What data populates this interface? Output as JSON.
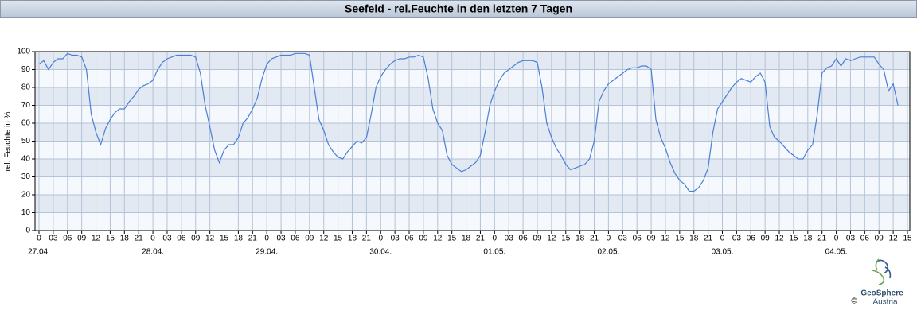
{
  "chart_data": {
    "type": "line",
    "title": "Seefeld - rel.Feuchte in den letzten 7 Tagen",
    "y_label": "rel. Feuchte in %",
    "x": [
      0,
      1,
      2,
      3,
      4,
      5,
      6,
      7,
      8,
      9,
      10,
      11,
      12,
      13,
      14,
      15,
      16,
      17,
      18,
      19,
      20,
      21,
      22,
      23,
      24,
      25,
      26,
      27,
      28,
      29,
      30,
      31,
      32,
      33,
      34,
      35,
      36,
      37,
      38,
      39,
      40,
      41,
      42,
      43,
      44,
      45,
      46,
      47,
      48,
      49,
      50,
      51,
      52,
      53,
      54,
      55,
      56,
      57,
      58,
      59,
      60,
      61,
      62,
      63,
      64,
      65,
      66,
      67,
      68,
      69,
      70,
      71,
      72,
      73,
      74,
      75,
      76,
      77,
      78,
      79,
      80,
      81,
      82,
      83,
      84,
      85,
      86,
      87,
      88,
      89,
      90,
      91,
      92,
      93,
      94,
      95,
      96,
      97,
      98,
      99,
      100,
      101,
      102,
      103,
      104,
      105,
      106,
      107,
      108,
      109,
      110,
      111,
      112,
      113,
      114,
      115,
      116,
      117,
      118,
      119,
      120,
      121,
      122,
      123,
      124,
      125,
      126,
      127,
      128,
      129,
      130,
      131,
      132,
      133,
      134,
      135,
      136,
      137,
      138,
      139,
      140,
      141,
      142,
      143,
      144,
      145,
      146,
      147,
      148,
      149,
      150,
      151,
      152,
      153,
      154,
      155,
      156,
      157,
      158,
      159,
      160,
      161,
      162,
      163,
      164,
      165,
      166,
      167,
      168,
      169,
      170,
      171,
      172,
      173,
      174,
      175,
      176,
      177,
      178,
      179,
      180,
      181
    ],
    "series": [
      {
        "name": "rel. Feuchte",
        "color": "#4a7fd6",
        "values": [
          93,
          95,
          90,
          94,
          96,
          96,
          99,
          98,
          98,
          97,
          90,
          65,
          55,
          48,
          57,
          62,
          66,
          68,
          68,
          72,
          75,
          79,
          81,
          82,
          84,
          90,
          94,
          96,
          97,
          98,
          98,
          98,
          98,
          97,
          88,
          70,
          58,
          45,
          38,
          45,
          48,
          48,
          52,
          60,
          63,
          68,
          74,
          85,
          93,
          96,
          97,
          98,
          98,
          98,
          99,
          99,
          99,
          98,
          80,
          62,
          56,
          48,
          44,
          41,
          40,
          44,
          47,
          50,
          49,
          52,
          65,
          80,
          86,
          90,
          93,
          95,
          96,
          96,
          97,
          97,
          98,
          97,
          85,
          68,
          60,
          56,
          42,
          37,
          35,
          33,
          34,
          36,
          38,
          42,
          55,
          70,
          78,
          84,
          88,
          90,
          92,
          94,
          95,
          95,
          95,
          94,
          80,
          60,
          52,
          46,
          42,
          37,
          34,
          35,
          36,
          37,
          40,
          50,
          72,
          78,
          82,
          84,
          86,
          88,
          90,
          91,
          91,
          92,
          92,
          90,
          62,
          52,
          46,
          38,
          32,
          28,
          26,
          22,
          22,
          24,
          28,
          35,
          55,
          68,
          72,
          76,
          80,
          83,
          85,
          84,
          83,
          86,
          88,
          83,
          58,
          52,
          50,
          47,
          44,
          42,
          40,
          40,
          45,
          48,
          65,
          88,
          91,
          92,
          96,
          92,
          96,
          95,
          96,
          97,
          97,
          97,
          97,
          93,
          90,
          78,
          82,
          70
        ]
      }
    ],
    "xlim": [
      0,
      183
    ],
    "xticks": [
      0,
      {
        "value": 3,
        "label": "03"
      },
      {
        "value": 6,
        "label": "06"
      },
      {
        "value": 9,
        "label": "09"
      },
      12,
      15,
      18,
      21,
      {
        "value": 24,
        "label": "0"
      },
      {
        "value": 27,
        "label": "03"
      },
      {
        "value": 30,
        "label": "06"
      },
      {
        "value": 33,
        "label": "09"
      },
      {
        "value": 36,
        "label": "12"
      },
      {
        "value": 39,
        "label": "15"
      },
      {
        "value": 42,
        "label": "18"
      },
      {
        "value": 45,
        "label": "21"
      },
      {
        "value": 48,
        "label": "0"
      },
      {
        "value": 51,
        "label": "03"
      },
      {
        "value": 54,
        "label": "06"
      },
      {
        "value": 57,
        "label": "09"
      },
      {
        "value": 60,
        "label": "12"
      },
      {
        "value": 63,
        "label": "15"
      },
      {
        "value": 66,
        "label": "18"
      },
      {
        "value": 69,
        "label": "21"
      },
      {
        "value": 72,
        "label": "0"
      },
      {
        "value": 75,
        "label": "03"
      },
      {
        "value": 78,
        "label": "06"
      },
      {
        "value": 81,
        "label": "09"
      },
      {
        "value": 84,
        "label": "12"
      },
      {
        "value": 87,
        "label": "15"
      },
      {
        "value": 90,
        "label": "18"
      },
      {
        "value": 93,
        "label": "21"
      },
      {
        "value": 96,
        "label": "0"
      },
      {
        "value": 99,
        "label": "03"
      },
      {
        "value": 102,
        "label": "06"
      },
      {
        "value": 105,
        "label": "09"
      },
      {
        "value": 108,
        "label": "12"
      },
      {
        "value": 111,
        "label": "15"
      },
      {
        "value": 114,
        "label": "18"
      },
      {
        "value": 117,
        "label": "21"
      },
      {
        "value": 120,
        "label": "0"
      },
      {
        "value": 123,
        "label": "03"
      },
      {
        "value": 126,
        "label": "06"
      },
      {
        "value": 129,
        "label": "09"
      },
      {
        "value": 132,
        "label": "12"
      },
      {
        "value": 135,
        "label": "15"
      },
      {
        "value": 138,
        "label": "18"
      },
      {
        "value": 141,
        "label": "21"
      },
      {
        "value": 144,
        "label": "0"
      },
      {
        "value": 147,
        "label": "03"
      },
      {
        "value": 150,
        "label": "06"
      },
      {
        "value": 153,
        "label": "09"
      },
      {
        "value": 156,
        "label": "12"
      },
      {
        "value": 159,
        "label": "15"
      },
      {
        "value": 162,
        "label": "18"
      },
      {
        "value": 165,
        "label": "21"
      },
      {
        "value": 168,
        "label": "0"
      },
      {
        "value": 171,
        "label": "03"
      },
      {
        "value": 174,
        "label": "06"
      },
      {
        "value": 177,
        "label": "09"
      },
      {
        "value": 180,
        "label": "12"
      },
      {
        "value": 183,
        "label": "15"
      }
    ],
    "x_date_labels": [
      {
        "value": 0,
        "label": "27.04."
      },
      {
        "value": 24,
        "label": "28.04."
      },
      {
        "value": 48,
        "label": "29.04."
      },
      {
        "value": 72,
        "label": "30.04."
      },
      {
        "value": 96,
        "label": "01.05."
      },
      {
        "value": 120,
        "label": "02.05."
      },
      {
        "value": 144,
        "label": "03.05."
      },
      {
        "value": 168,
        "label": "04.05."
      }
    ],
    "ylim": [
      0,
      100
    ],
    "yticks": [
      0,
      10,
      20,
      30,
      40,
      50,
      60,
      70,
      80,
      90,
      100
    ],
    "grid": true
  },
  "logo": {
    "name": "GeoSphere",
    "sub": "Austria",
    "copyright": "©"
  }
}
